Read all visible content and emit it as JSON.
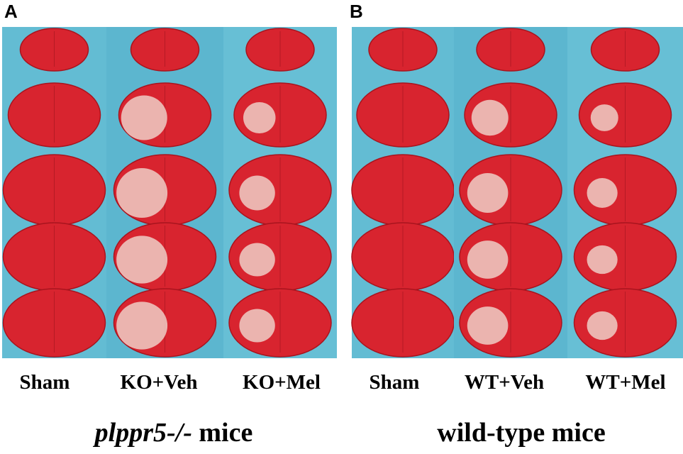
{
  "panels": [
    {
      "label": "A",
      "columns": [
        "Sham",
        "KO+Veh",
        "KO+Mel"
      ],
      "caption": {
        "italic": "plppr5-/-",
        "text": "mice"
      }
    },
    {
      "label": "B",
      "columns": [
        "Sham",
        "WT+Veh",
        "WT+Mel"
      ],
      "caption": {
        "italic": null,
        "text": "wild-type mice"
      }
    }
  ]
}
